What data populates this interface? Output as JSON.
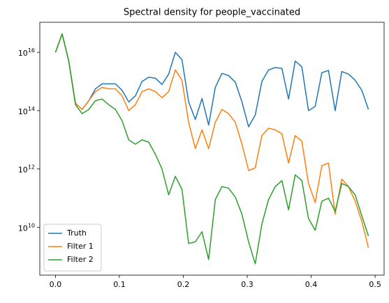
{
  "chart_data": {
    "type": "line",
    "title": "Spectral density for people_vaccinated",
    "x": [
      0,
      0.0104,
      0.0208,
      0.0313,
      0.0417,
      0.0521,
      0.0625,
      0.0729,
      0.0833,
      0.0938,
      0.1042,
      0.1146,
      0.125,
      0.1354,
      0.1458,
      0.1563,
      0.1667,
      0.1771,
      0.1875,
      0.1979,
      0.2083,
      0.2188,
      0.2292,
      0.2396,
      0.25,
      0.2604,
      0.2708,
      0.2813,
      0.2917,
      0.3021,
      0.3125,
      0.3229,
      0.3333,
      0.3438,
      0.3542,
      0.3646,
      0.375,
      0.3854,
      0.3958,
      0.4063,
      0.4167,
      0.4271,
      0.4375,
      0.4479,
      0.4583,
      0.4688,
      0.4792,
      0.4896
    ],
    "series": [
      {
        "name": "Truth",
        "color": "#1f77b4",
        "values": [
          1e+16,
          4.3e+16,
          5000000000000000.0,
          180000000000000.0,
          110000000000000.0,
          220000000000000.0,
          560000000000000.0,
          830000000000000.0,
          830000000000000.0,
          830000000000000.0,
          500000000000000.0,
          200000000000000.0,
          320000000000000.0,
          1000000000000000.0,
          1400000000000000.0,
          1300000000000000.0,
          790000000000000.0,
          1800000000000000.0,
          1e+16,
          5600000000000000.0,
          200000000000000.0,
          50000000000000.0,
          260000000000000.0,
          32000000000000.0,
          630000000000000.0,
          1900000000000000.0,
          1600000000000000.0,
          950000000000000.0,
          200000000000000.0,
          28000000000000.0,
          71000000000000.0,
          1000000000000000.0,
          2500000000000000.0,
          3000000000000000.0,
          2800000000000000.0,
          250000000000000.0,
          5000000000000000.0,
          3200000000000000.0,
          100000000000000.0,
          140000000000000.0,
          2000000000000000.0,
          2400000000000000.0,
          100000000000000.0,
          2200000000000000.0,
          1800000000000000.0,
          1100000000000000.0,
          500000000000000.0,
          110000000000000.0
        ]
      },
      {
        "name": "Filter 1",
        "color": "#ff7f0e",
        "values": [
          1e+16,
          4.3e+16,
          5000000000000000.0,
          180000000000000.0,
          110000000000000.0,
          220000000000000.0,
          450000000000000.0,
          630000000000000.0,
          560000000000000.0,
          560000000000000.0,
          320000000000000.0,
          100000000000000.0,
          160000000000000.0,
          450000000000000.0,
          560000000000000.0,
          450000000000000.0,
          280000000000000.0,
          450000000000000.0,
          2500000000000000.0,
          1100000000000000.0,
          40000000000000.0,
          5000000000000.0,
          22000000000000.0,
          5000000000000.0,
          40000000000000.0,
          110000000000000.0,
          79000000000000.0,
          40000000000000.0,
          7100000000000.0,
          890000000000.0,
          1100000000000.0,
          14000000000000.0,
          25000000000000.0,
          22000000000000.0,
          16000000000000.0,
          1600000000000.0,
          14000000000000.0,
          8900000000000.0,
          320000000000.0,
          71000000000.0,
          1300000000000.0,
          1600000000000.0,
          28000000000.0,
          450000000000.0,
          250000000000.0,
          79000000000.0,
          16000000000.0,
          2000000000.0
        ]
      },
      {
        "name": "Filter 2",
        "color": "#2ca02c",
        "values": [
          1e+16,
          4.3e+16,
          5000000000000000.0,
          160000000000000.0,
          79000000000000.0,
          110000000000000.0,
          220000000000000.0,
          250000000000000.0,
          160000000000000.0,
          110000000000000.0,
          45000000000000.0,
          10000000000000.0,
          7100000000000.0,
          10000000000000.0,
          8300000000000.0,
          3200000000000.0,
          1000000000000.0,
          130000000000.0,
          560000000000.0,
          200000000000.0,
          2800000000.0,
          3200000000.0,
          7100000000.0,
          790000000.0,
          89000000000.0,
          250000000000.0,
          220000000000.0,
          110000000000.0,
          28000000000.0,
          3200000000.0,
          560000000.0,
          13000000000.0,
          89000000000.0,
          250000000000.0,
          400000000000.0,
          40000000000.0,
          630000000000.0,
          400000000000.0,
          20000000000.0,
          7900000000.0,
          79000000000.0,
          100000000000.0,
          35000000000.0,
          320000000000.0,
          250000000000.0,
          130000000000.0,
          25000000000.0,
          5000000000.0
        ]
      }
    ],
    "xlim": [
      -0.0245,
      0.5141
    ],
    "xticks": [
      {
        "value": 0,
        "label": "0.0"
      },
      0.1,
      0.2,
      0.3,
      0.4,
      0.5
    ],
    "ylim": [
      230000000.0,
      1.07e+17
    ],
    "ylog": true,
    "yticks": [
      {
        "value": 10000000000.0,
        "label": "10^10"
      },
      {
        "value": 1000000000000.0,
        "label": "10^12"
      },
      {
        "value": 100000000000000.0,
        "label": "10^14"
      },
      {
        "value": 1e+16,
        "label": "10^16"
      }
    ],
    "legend": "lower left"
  }
}
